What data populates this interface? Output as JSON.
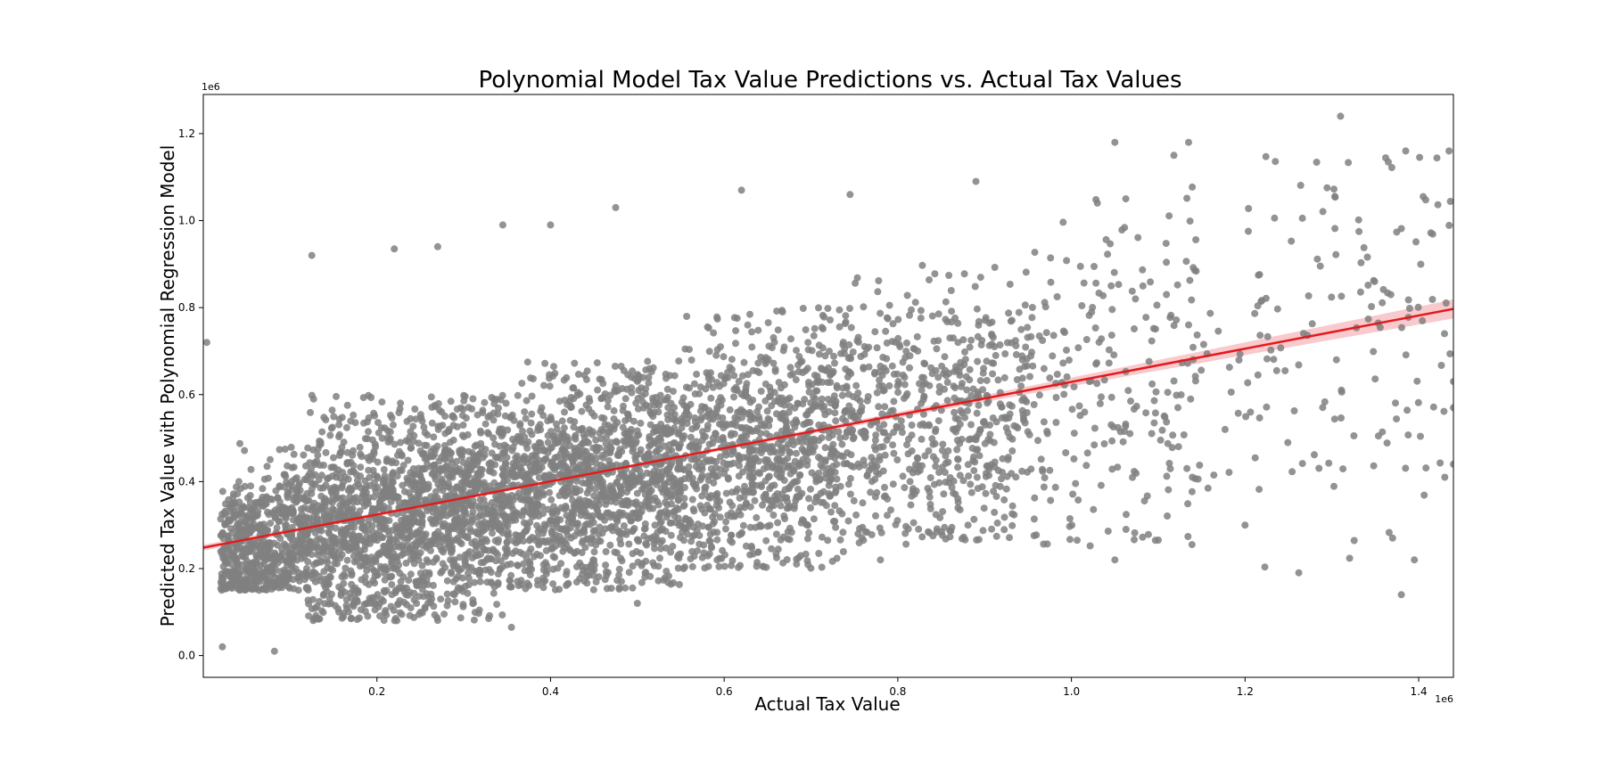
{
  "chart_data": {
    "type": "scatter",
    "title": "Polynomial Model Tax Value Predictions vs. Actual Tax Values",
    "xlabel": "Actual Tax Value",
    "ylabel": "Predicted Tax Value with Polynomial Regression Model",
    "x_offset_label": "1e6",
    "y_offset_label": "1e6",
    "xlim": [
      0.0,
      1.44
    ],
    "ylim": [
      -0.05,
      1.29
    ],
    "x_ticks": [
      0.2,
      0.4,
      0.6,
      0.8,
      1.0,
      1.2,
      1.4
    ],
    "x_tick_labels": [
      "0.2",
      "0.4",
      "0.6",
      "0.8",
      "1.0",
      "1.2",
      "1.4"
    ],
    "y_ticks": [
      0.0,
      0.2,
      0.4,
      0.6,
      0.8,
      1.0,
      1.2
    ],
    "y_tick_labels": [
      "0.0",
      "0.2",
      "0.4",
      "0.6",
      "0.8",
      "1.0",
      "1.2"
    ],
    "grid": false,
    "scatter_color": "#808080",
    "regression_color": "#e31a1c",
    "confidence_band_color": "#f4a6ab",
    "regression_line": {
      "x": [
        0.0,
        1.44
      ],
      "y": [
        0.248,
        0.797
      ]
    },
    "point_density_regions": [
      {
        "x_range": [
          0.02,
          0.12
        ],
        "y_range": [
          0.15,
          0.5
        ],
        "count": 620
      },
      {
        "x_range": [
          0.12,
          0.35
        ],
        "y_range": [
          0.08,
          0.6
        ],
        "count": 1600
      },
      {
        "x_range": [
          0.35,
          0.55
        ],
        "y_range": [
          0.15,
          0.68
        ],
        "count": 1250
      },
      {
        "x_range": [
          0.55,
          0.75
        ],
        "y_range": [
          0.2,
          0.8
        ],
        "count": 950
      },
      {
        "x_range": [
          0.75,
          0.95
        ],
        "y_range": [
          0.25,
          0.9
        ],
        "count": 560
      },
      {
        "x_range": [
          0.95,
          1.15
        ],
        "y_range": [
          0.25,
          1.1
        ],
        "count": 230
      },
      {
        "x_range": [
          1.15,
          1.44
        ],
        "y_range": [
          0.15,
          1.15
        ],
        "count": 150
      }
    ],
    "outliers": [
      [
        0.004,
        0.72
      ],
      [
        0.125,
        0.92
      ],
      [
        0.22,
        0.935
      ],
      [
        0.27,
        0.94
      ],
      [
        0.345,
        0.99
      ],
      [
        0.4,
        0.99
      ],
      [
        0.475,
        1.03
      ],
      [
        0.62,
        1.07
      ],
      [
        0.745,
        1.06
      ],
      [
        0.89,
        1.09
      ],
      [
        1.05,
        1.18
      ],
      [
        1.135,
        1.18
      ],
      [
        1.118,
        1.15
      ],
      [
        1.31,
        1.24
      ],
      [
        1.385,
        1.16
      ],
      [
        1.435,
        1.16
      ],
      [
        0.355,
        0.065
      ],
      [
        0.5,
        0.12
      ],
      [
        0.082,
        0.01
      ],
      [
        0.022,
        0.02
      ],
      [
        1.38,
        0.14
      ],
      [
        1.395,
        0.22
      ],
      [
        1.37,
        0.27
      ],
      [
        1.05,
        0.22
      ],
      [
        1.2,
        0.3
      ],
      [
        0.78,
        0.22
      ],
      [
        1.44,
        0.63
      ],
      [
        1.44,
        0.57
      ],
      [
        1.43,
        0.41
      ],
      [
        1.44,
        0.44
      ]
    ]
  }
}
